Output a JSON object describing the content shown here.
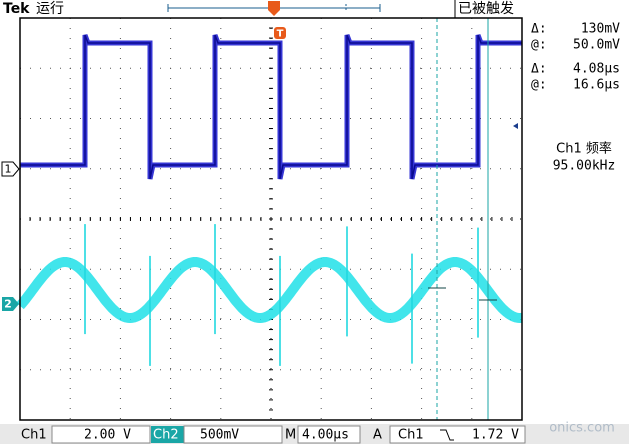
{
  "header": {
    "brand": "Tek",
    "status": "运行",
    "trigger_state": "已被触发"
  },
  "readouts": [
    {
      "symbol": "Δ:",
      "value": "130mV"
    },
    {
      "symbol": "@:",
      "value": "50.0mV"
    },
    {
      "symbol": "Δ:",
      "value": "4.08µs"
    },
    {
      "symbol": "@:",
      "value": "16.6µs"
    }
  ],
  "measurement": {
    "label": "Ch1 频率",
    "value": "95.00kHz"
  },
  "markers": {
    "ch1": "1",
    "ch2": "2",
    "trigger": "T"
  },
  "footer": {
    "ch1_label": "Ch1",
    "ch1_scale": "2.00 V",
    "ch2_label": "Ch2",
    "ch2_scale": "500mV",
    "time_label": "M",
    "time_scale": "4.00µs",
    "trigger_mode": "A",
    "trigger_source": "Ch1",
    "trigger_level": "1.72 V"
  },
  "watermark": "onics.com"
}
